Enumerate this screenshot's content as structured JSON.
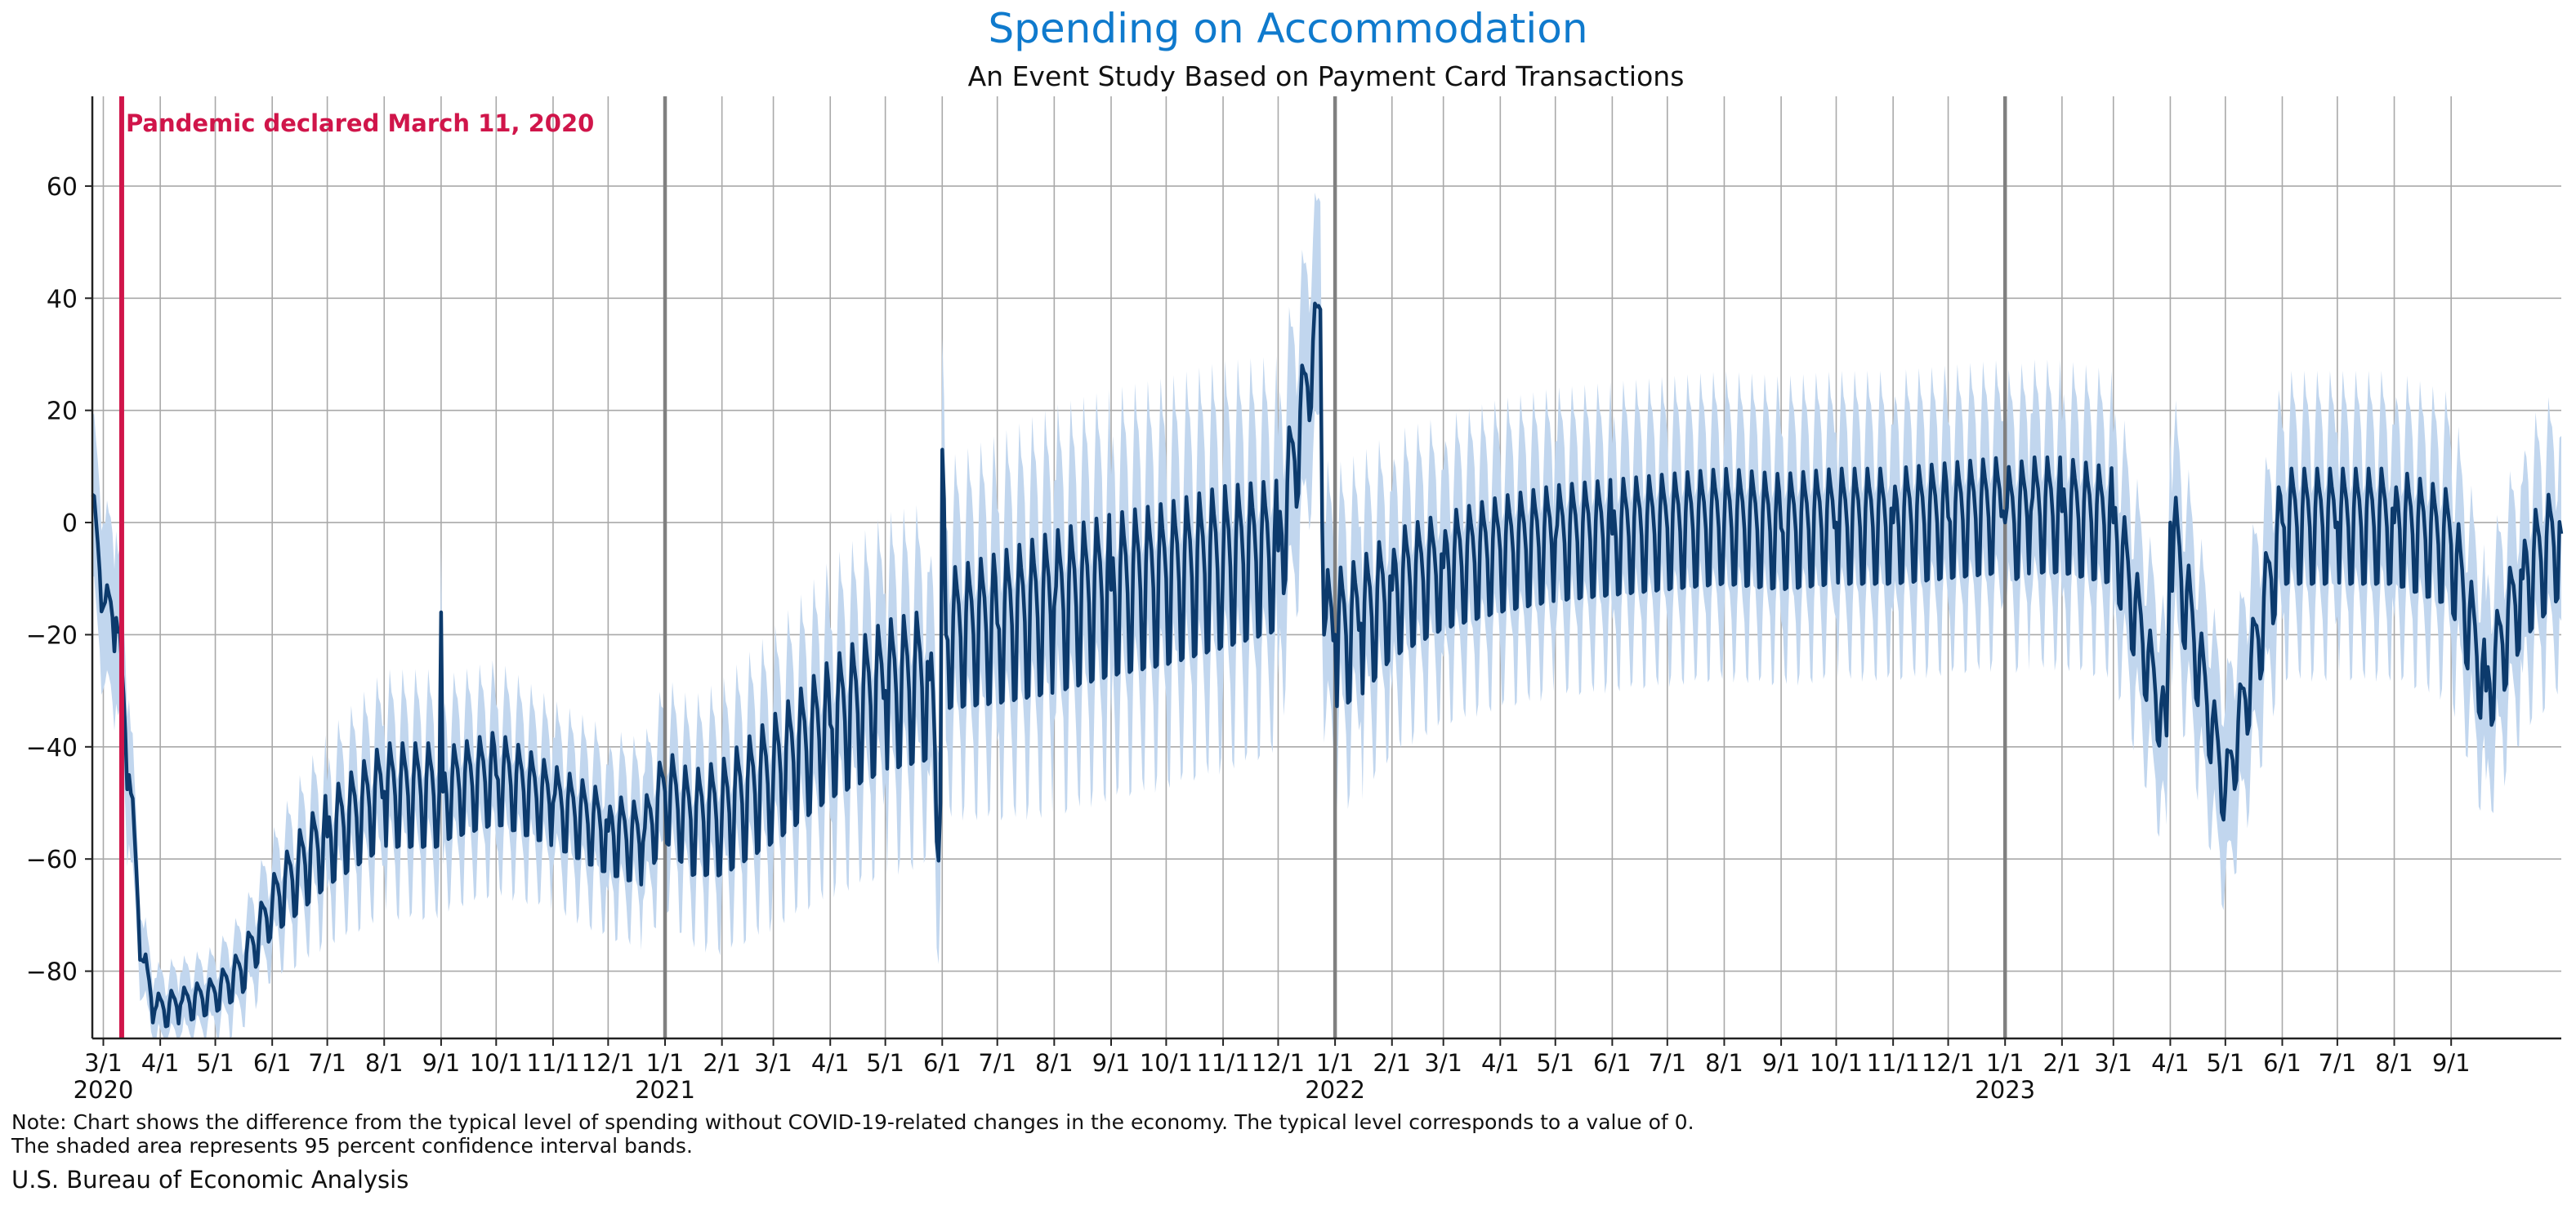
{
  "title": "Spending on Accommodation",
  "subtitle": "An Event Study Based on Payment Card Transactions",
  "note_line1": "Note: Chart shows the difference from the typical level of spending without COVID-19-related changes in the economy. The typical level corresponds to a value of 0.",
  "note_line2": "The shaded area represents 95 percent confidence interval bands.",
  "source": "U.S. Bureau of Economic Analysis",
  "colors": {
    "line": "#0c3a6c",
    "band": "#c1d6ee",
    "event": "#d0154a",
    "grid": "#a9a9a9",
    "year_line": "#808080",
    "title": "#0f7acd"
  },
  "chart_data": {
    "type": "line",
    "title": "Spending on Accommodation",
    "subtitle": "An Event Study Based on Payment Card Transactions",
    "xlabel": "",
    "ylabel": "",
    "x_range": [
      "2020-02-24",
      "2023-10-31"
    ],
    "ylim": [
      -92,
      76
    ],
    "yticks": [
      -80,
      -60,
      -40,
      -20,
      0,
      20,
      40,
      60
    ],
    "ytick_labels": [
      "−80",
      "−60",
      "−40",
      "−20",
      "0",
      "20",
      "40",
      "60"
    ],
    "grid": true,
    "year_lines": [
      "2021-01-01",
      "2022-01-01",
      "2023-01-01"
    ],
    "xticks": [
      {
        "date": "2020-03-01",
        "label": "3/1",
        "year": "2020"
      },
      {
        "date": "2020-04-01",
        "label": "4/1"
      },
      {
        "date": "2020-05-01",
        "label": "5/1"
      },
      {
        "date": "2020-06-01",
        "label": "6/1"
      },
      {
        "date": "2020-07-01",
        "label": "7/1"
      },
      {
        "date": "2020-08-01",
        "label": "8/1"
      },
      {
        "date": "2020-09-01",
        "label": "9/1"
      },
      {
        "date": "2020-10-01",
        "label": "10/1"
      },
      {
        "date": "2020-11-01",
        "label": "11/1"
      },
      {
        "date": "2020-12-01",
        "label": "12/1"
      },
      {
        "date": "2021-01-01",
        "label": "1/1",
        "year": "2021"
      },
      {
        "date": "2021-02-01",
        "label": "2/1"
      },
      {
        "date": "2021-03-01",
        "label": "3/1"
      },
      {
        "date": "2021-04-01",
        "label": "4/1"
      },
      {
        "date": "2021-05-01",
        "label": "5/1"
      },
      {
        "date": "2021-06-01",
        "label": "6/1"
      },
      {
        "date": "2021-07-01",
        "label": "7/1"
      },
      {
        "date": "2021-08-01",
        "label": "8/1"
      },
      {
        "date": "2021-09-01",
        "label": "9/1"
      },
      {
        "date": "2021-10-01",
        "label": "10/1"
      },
      {
        "date": "2021-11-01",
        "label": "11/1"
      },
      {
        "date": "2021-12-01",
        "label": "12/1"
      },
      {
        "date": "2022-01-01",
        "label": "1/1",
        "year": "2022"
      },
      {
        "date": "2022-02-01",
        "label": "2/1"
      },
      {
        "date": "2022-03-01",
        "label": "3/1"
      },
      {
        "date": "2022-04-01",
        "label": "4/1"
      },
      {
        "date": "2022-05-01",
        "label": "5/1"
      },
      {
        "date": "2022-06-01",
        "label": "6/1"
      },
      {
        "date": "2022-07-01",
        "label": "7/1"
      },
      {
        "date": "2022-08-01",
        "label": "8/1"
      },
      {
        "date": "2022-09-01",
        "label": "9/1"
      },
      {
        "date": "2022-10-01",
        "label": "10/1"
      },
      {
        "date": "2022-11-01",
        "label": "11/1"
      },
      {
        "date": "2022-12-01",
        "label": "12/1"
      },
      {
        "date": "2023-01-01",
        "label": "1/1",
        "year": "2023"
      },
      {
        "date": "2023-02-01",
        "label": "2/1"
      },
      {
        "date": "2023-03-01",
        "label": "3/1"
      },
      {
        "date": "2023-04-01",
        "label": "4/1"
      },
      {
        "date": "2023-05-01",
        "label": "5/1"
      },
      {
        "date": "2023-06-01",
        "label": "6/1"
      },
      {
        "date": "2023-07-01",
        "label": "7/1"
      },
      {
        "date": "2023-08-01",
        "label": "8/1"
      },
      {
        "date": "2023-09-01",
        "label": "9/1"
      }
    ],
    "event": {
      "date": "2020-03-11",
      "label": "Pandemic declared March 11, 2020"
    },
    "series": [
      {
        "series_type": "line",
        "x": [
          "2020-02-24",
          "2020-03-01",
          "2020-03-08",
          "2020-03-15",
          "2020-03-22",
          "2020-03-29",
          "2020-04-12",
          "2020-05-01",
          "2020-05-15",
          "2020-06-01",
          "2020-06-15",
          "2020-07-01",
          "2020-08-01",
          "2020-08-31",
          "2020-09-01",
          "2020-09-02",
          "2020-10-01",
          "2020-11-01",
          "2020-12-01",
          "2020-12-20",
          "2021-01-01",
          "2021-01-15",
          "2021-02-01",
          "2021-03-01",
          "2021-04-01",
          "2021-05-01",
          "2021-05-25",
          "2021-05-31",
          "2021-06-01",
          "2021-06-03",
          "2021-07-01",
          "2021-08-01",
          "2021-09-01",
          "2021-10-01",
          "2021-11-01",
          "2021-12-01",
          "2021-12-24",
          "2021-12-26",
          "2022-01-01",
          "2022-01-15",
          "2022-02-01",
          "2022-03-01",
          "2022-04-01",
          "2022-05-01",
          "2022-06-01",
          "2022-07-01",
          "2022-08-01",
          "2022-09-01",
          "2022-10-01",
          "2022-11-01",
          "2022-12-01",
          "2022-12-31",
          "2023-01-01",
          "2023-01-15",
          "2023-02-01",
          "2023-03-01",
          "2023-03-30",
          "2023-04-01",
          "2023-05-01",
          "2023-06-01",
          "2023-07-01",
          "2023-08-01",
          "2023-09-01",
          "2023-09-20",
          "2023-10-10",
          "2023-10-31"
        ],
        "y": [
          5,
          -15,
          -17,
          -45,
          -78,
          -87,
          -86,
          -84,
          -80,
          -68,
          -62,
          -56,
          -48,
          -48,
          -16,
          -48,
          -45,
          -50,
          -55,
          -57,
          -48,
          -53,
          -52,
          -45,
          -36,
          -30,
          -28,
          -50,
          13,
          -20,
          -18,
          -15,
          -12,
          -10,
          -7,
          -5,
          38,
          -20,
          -20,
          -18,
          -12,
          -8,
          -5,
          -3,
          -2,
          -1,
          0,
          -1,
          0,
          0,
          1,
          2,
          0,
          2,
          2,
          0,
          -38,
          0,
          -48,
          0,
          0,
          0,
          -4,
          -30,
          -10,
          -2
        ],
        "weekly_amplitude": [
          3,
          4,
          6,
          6,
          4,
          3,
          3,
          3,
          4,
          5,
          7,
          8,
          9,
          9,
          4,
          8,
          8,
          7,
          7,
          7,
          8,
          9,
          10,
          11,
          12,
          13,
          13,
          13,
          12,
          12,
          13,
          14,
          14,
          14,
          14,
          13,
          6,
          12,
          12,
          12,
          11,
          10,
          10,
          10,
          10,
          10,
          10,
          10,
          10,
          10,
          10,
          10,
          10,
          10,
          10,
          10,
          6,
          10,
          6,
          10,
          10,
          10,
          10,
          8,
          10,
          10
        ],
        "ci_half_width": [
          14,
          14,
          14,
          12,
          6,
          5,
          5,
          5,
          6,
          7,
          8,
          9,
          11,
          11,
          11,
          11,
          11,
          10,
          10,
          10,
          11,
          11,
          12,
          13,
          15,
          16,
          16,
          16,
          17,
          17,
          18,
          19,
          19,
          19,
          19,
          19,
          18,
          17,
          16,
          16,
          15,
          15,
          15,
          15,
          15,
          15,
          15,
          15,
          15,
          15,
          15,
          15,
          15,
          15,
          15,
          15,
          15,
          15,
          15,
          15,
          15,
          15,
          15,
          15,
          15,
          15
        ]
      }
    ]
  }
}
